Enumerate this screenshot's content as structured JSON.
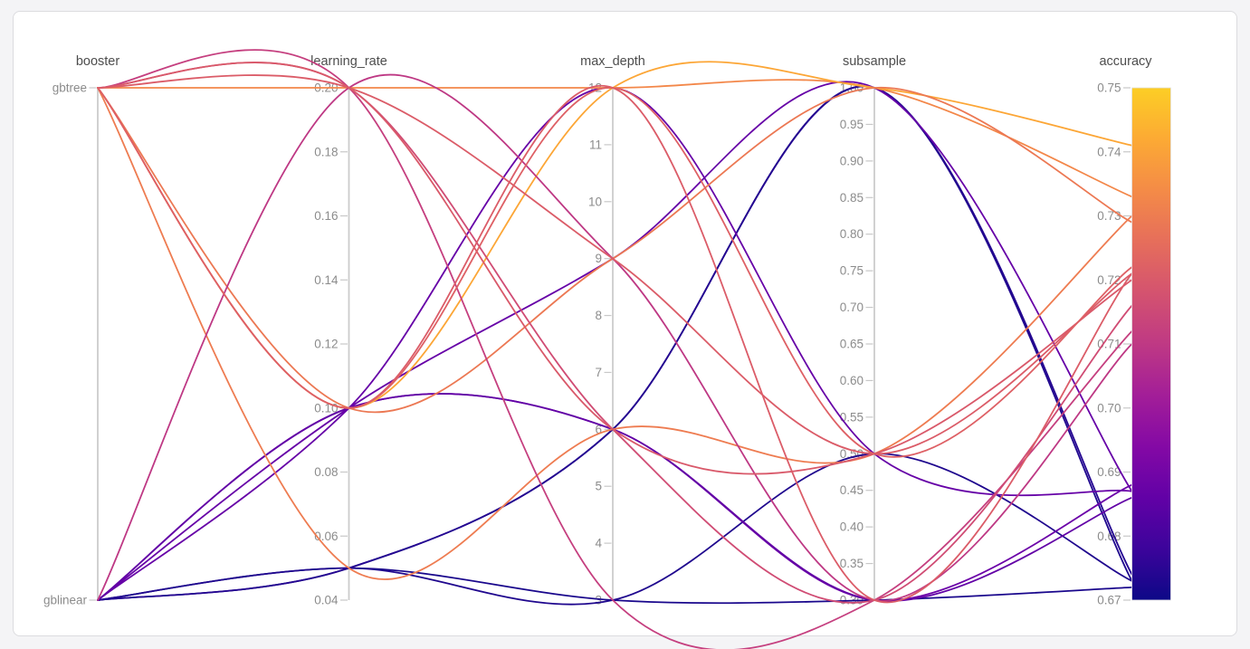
{
  "page": {
    "background_color": "#f4f4f6",
    "card_background": "#ffffff",
    "card_border_color": "#dcdcdf"
  },
  "chart_data": {
    "type": "parallel_coordinates",
    "title": "",
    "legend_position": "none",
    "grid": false,
    "line_color_attribute": "accuracy",
    "colorbar": {
      "attribute": "accuracy",
      "cmin": 0.67,
      "cmax": 0.75,
      "colorscale_name": "plasma",
      "colorscale": [
        [
          0.0,
          "#0d0887"
        ],
        [
          0.1,
          "#41049d"
        ],
        [
          0.2,
          "#6a00a8"
        ],
        [
          0.3,
          "#8f0da4"
        ],
        [
          0.4,
          "#b12a90"
        ],
        [
          0.5,
          "#cc4778"
        ],
        [
          0.6,
          "#e16462"
        ],
        [
          0.7,
          "#f2844b"
        ],
        [
          0.8,
          "#fca636"
        ],
        [
          0.9,
          "#fcce25"
        ],
        [
          1.0,
          "#f0f921"
        ]
      ],
      "colormap_top_fraction": 0.9
    },
    "axes": [
      {
        "key": "booster",
        "title": "booster",
        "scale": "categorical",
        "categories": [
          "gbtree",
          "gblinear"
        ],
        "ticks": [
          {
            "label": "gbtree",
            "value": "gbtree"
          },
          {
            "label": "gblinear",
            "value": "gblinear"
          }
        ]
      },
      {
        "key": "learning_rate",
        "title": "learning_rate",
        "scale": "linear",
        "min": 0.04,
        "max": 0.2,
        "ticks": [
          {
            "label": "0.20",
            "value": 0.2
          },
          {
            "label": "0.18",
            "value": 0.18
          },
          {
            "label": "0.16",
            "value": 0.16
          },
          {
            "label": "0.14",
            "value": 0.14
          },
          {
            "label": "0.12",
            "value": 0.12
          },
          {
            "label": "0.10",
            "value": 0.1
          },
          {
            "label": "0.08",
            "value": 0.08
          },
          {
            "label": "0.06",
            "value": 0.06
          },
          {
            "label": "0.04",
            "value": 0.04
          }
        ]
      },
      {
        "key": "max_depth",
        "title": "max_depth",
        "scale": "linear",
        "min": 3,
        "max": 12,
        "ticks": [
          {
            "label": "12",
            "value": 12
          },
          {
            "label": "11",
            "value": 11
          },
          {
            "label": "10",
            "value": 10
          },
          {
            "label": "9",
            "value": 9
          },
          {
            "label": "8",
            "value": 8
          },
          {
            "label": "7",
            "value": 7
          },
          {
            "label": "6",
            "value": 6
          },
          {
            "label": "5",
            "value": 5
          },
          {
            "label": "4",
            "value": 4
          },
          {
            "label": "3",
            "value": 3
          }
        ]
      },
      {
        "key": "subsample",
        "title": "subsample",
        "scale": "linear",
        "min": 0.3,
        "max": 1.0,
        "ticks": [
          {
            "label": "1.00",
            "value": 1.0
          },
          {
            "label": "0.95",
            "value": 0.95
          },
          {
            "label": "0.90",
            "value": 0.9
          },
          {
            "label": "0.85",
            "value": 0.85
          },
          {
            "label": "0.80",
            "value": 0.8
          },
          {
            "label": "0.75",
            "value": 0.75
          },
          {
            "label": "0.70",
            "value": 0.7
          },
          {
            "label": "0.65",
            "value": 0.65
          },
          {
            "label": "0.60",
            "value": 0.6
          },
          {
            "label": "0.55",
            "value": 0.55
          },
          {
            "label": "0.50",
            "value": 0.5
          },
          {
            "label": "0.45",
            "value": 0.45
          },
          {
            "label": "0.40",
            "value": 0.4
          },
          {
            "label": "0.35",
            "value": 0.35
          },
          {
            "label": "0.30",
            "value": 0.3
          }
        ]
      },
      {
        "key": "accuracy",
        "title": "accuracy",
        "scale": "linear",
        "min": 0.67,
        "max": 0.75,
        "has_colorbar": true,
        "ticks": [
          {
            "label": "0.75",
            "value": 0.75
          },
          {
            "label": "0.74",
            "value": 0.74
          },
          {
            "label": "0.73",
            "value": 0.73
          },
          {
            "label": "0.72",
            "value": 0.72
          },
          {
            "label": "0.71",
            "value": 0.71
          },
          {
            "label": "0.70",
            "value": 0.7
          },
          {
            "label": "0.69",
            "value": 0.69
          },
          {
            "label": "0.68",
            "value": 0.68
          },
          {
            "label": "0.67",
            "value": 0.67
          }
        ]
      }
    ],
    "trials": [
      {
        "booster": "gblinear",
        "learning_rate": 0.05,
        "max_depth": 3,
        "subsample": 0.3,
        "accuracy": 0.672
      },
      {
        "booster": "gblinear",
        "learning_rate": 0.05,
        "max_depth": 3,
        "subsample": 0.5,
        "accuracy": 0.673
      },
      {
        "booster": "gblinear",
        "learning_rate": 0.05,
        "max_depth": 6,
        "subsample": 1.0,
        "accuracy": 0.673
      },
      {
        "booster": "gblinear",
        "learning_rate": 0.05,
        "max_depth": 6,
        "subsample": 1.0,
        "accuracy": 0.674
      },
      {
        "booster": "gblinear",
        "learning_rate": 0.1,
        "max_depth": 12,
        "subsample": 0.5,
        "accuracy": 0.687
      },
      {
        "booster": "gblinear",
        "learning_rate": 0.1,
        "max_depth": 9,
        "subsample": 1.0,
        "accuracy": 0.687
      },
      {
        "booster": "gblinear",
        "learning_rate": 0.1,
        "max_depth": 6,
        "subsample": 0.3,
        "accuracy": 0.688
      },
      {
        "booster": "gblinear",
        "learning_rate": 0.1,
        "max_depth": 6,
        "subsample": 0.3,
        "accuracy": 0.686
      },
      {
        "booster": "gbtree",
        "learning_rate": 0.2,
        "max_depth": 12,
        "subsample": 1.0,
        "accuracy": 0.733
      },
      {
        "booster": "gbtree",
        "learning_rate": 0.1,
        "max_depth": 12,
        "subsample": 1.0,
        "accuracy": 0.741
      },
      {
        "booster": "gbtree",
        "learning_rate": 0.1,
        "max_depth": 9,
        "subsample": 1.0,
        "accuracy": 0.729
      },
      {
        "booster": "gbtree",
        "learning_rate": 0.05,
        "max_depth": 6,
        "subsample": 0.5,
        "accuracy": 0.73
      },
      {
        "booster": "gblinear",
        "learning_rate": 0.2,
        "max_depth": 9,
        "subsample": 0.3,
        "accuracy": 0.71
      },
      {
        "booster": "gbtree",
        "learning_rate": 0.2,
        "max_depth": 3,
        "subsample": 0.3,
        "accuracy": 0.712
      },
      {
        "booster": "gbtree",
        "learning_rate": 0.2,
        "max_depth": 6,
        "subsample": 0.3,
        "accuracy": 0.716
      },
      {
        "booster": "gbtree",
        "learning_rate": 0.2,
        "max_depth": 6,
        "subsample": 0.5,
        "accuracy": 0.72
      },
      {
        "booster": "gbtree",
        "learning_rate": 0.2,
        "max_depth": 9,
        "subsample": 0.5,
        "accuracy": 0.721
      },
      {
        "booster": "gbtree",
        "learning_rate": 0.1,
        "max_depth": 12,
        "subsample": 0.3,
        "accuracy": 0.721
      },
      {
        "booster": "gbtree",
        "learning_rate": 0.1,
        "max_depth": 12,
        "subsample": 0.5,
        "accuracy": 0.722
      }
    ],
    "style": {
      "axis_line_color": "#cccccc",
      "tick_text_color": "#8c8c8c",
      "axis_title_color": "#4d4d4d"
    }
  }
}
